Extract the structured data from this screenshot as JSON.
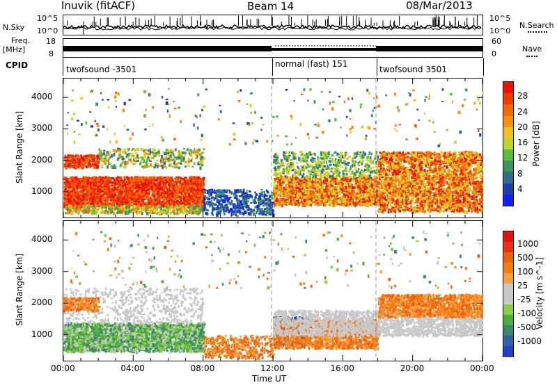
{
  "header": {
    "station": "Inuvik (fitACF)",
    "beam": "Beam 14",
    "date": "08/Mar/2013"
  },
  "nsky": {
    "label": "N.Sky",
    "ticks": [
      "10^5",
      "10^0"
    ],
    "right_label": "N.Search",
    "right_ticks": [
      "10^5",
      "10^0"
    ]
  },
  "freq": {
    "label_top": "Freq.",
    "label_bottom": "[MHz]",
    "ticks": [
      "18",
      "8"
    ],
    "right_label": "Nave",
    "right_ticks": [
      "60",
      "0"
    ]
  },
  "cpid": {
    "label": "CPID",
    "segments": [
      {
        "name": "twofsound -3501",
        "start_h": 0,
        "end_h": 12
      },
      {
        "name": "normal (fast) 151",
        "start_h": 12,
        "end_h": 18
      },
      {
        "name": "twofsound 3501",
        "start_h": 18,
        "end_h": 24
      }
    ]
  },
  "time_axis": {
    "label": "Time UT",
    "ticks": [
      "00:00",
      "04:00",
      "08:00",
      "12:00",
      "16:00",
      "20:00",
      "00:00"
    ]
  },
  "chart_data": [
    {
      "type": "heatmap",
      "ylabel": "Slant Range [km]",
      "yticks": [
        "1000",
        "2000",
        "3000",
        "4000"
      ],
      "ylim": [
        180,
        4600
      ],
      "xlim": [
        0,
        24
      ],
      "colorbar": {
        "label": "Power [dB]",
        "ticks": [
          "4",
          "8",
          "12",
          "16",
          "20",
          "24",
          "28"
        ],
        "colors": [
          "#1020ff",
          "#2040b0",
          "#2f6e8a",
          "#3c9460",
          "#5cbf3a",
          "#bcd62a",
          "#f5c21a",
          "#f59010",
          "#f56a08",
          "#f03a00",
          "#ee1000"
        ]
      }
    },
    {
      "type": "heatmap",
      "ylabel": "Velocity [m s^-1]",
      "axis_ylabel": "Slant Range [km]",
      "yticks": [
        "1000",
        "2000",
        "3000",
        "4000"
      ],
      "ylim": [
        180,
        4600
      ],
      "xlim": [
        0,
        24
      ],
      "colorbar": {
        "label": "Velocity [m s^-1]",
        "ticks": [
          "1000",
          "500",
          "100",
          "25",
          "-25",
          "-100",
          "-500",
          "-1000"
        ],
        "colors": [
          "#2340c8",
          "#2f62a0",
          "#3c8a6c",
          "#4fae3a",
          "#8ad040",
          "#c8c8c8",
          "#c8c8c8",
          "#f5a040",
          "#f58010",
          "#f06010",
          "#ee3010",
          "#e81010"
        ]
      }
    }
  ]
}
